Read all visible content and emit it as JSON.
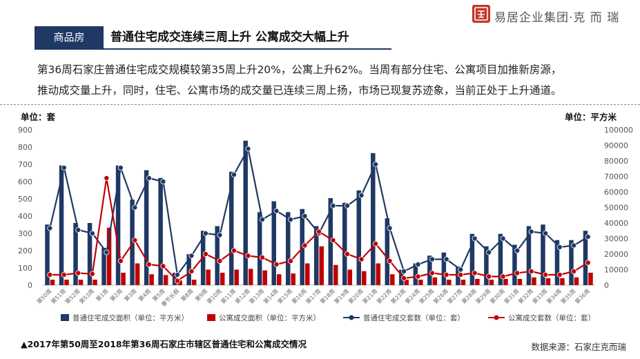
{
  "logo": {
    "text": "易居企业集团·克 而 瑞"
  },
  "header": {
    "tag": "商品房",
    "title": "普通住宅成交连续三周上升 公寓成交大幅上升"
  },
  "summary": {
    "line1": "第36周石家庄普通住宅成交规模较第35周上升20%，公寓上升62%。当周有部分住宅、公寓项目加推新房源，",
    "line2": "推动成交量上升，同时，住宅、公寓市场的成交量已连续三周上扬，市场已现复苏迹象，当前正处于上升通道。"
  },
  "colors": {
    "navy": "#1f3864",
    "red": "#c00000",
    "tag_bg": "#1f3864",
    "logo_red": "#c0392b"
  },
  "chart_data": {
    "type": "bar",
    "left_unit": "单位：套",
    "right_unit": "单位：平方米",
    "left_axis": {
      "min": 0,
      "max": 900,
      "ticks": [
        "0",
        "100",
        "200",
        "300",
        "400",
        "500",
        "600",
        "700",
        "800",
        "900"
      ]
    },
    "right_axis": {
      "min": 0,
      "max": 100000,
      "ticks": [
        "0",
        "10000",
        "20000",
        "30000",
        "40000",
        "50000",
        "60000",
        "70000",
        "80000",
        "90000",
        "100000"
      ]
    },
    "categories": [
      "第50周",
      "第51周",
      "第52周",
      "第53周",
      "第1周",
      "第2周",
      "第3周",
      "第4周",
      "第5周",
      "春节长假",
      "第8周",
      "第9周",
      "第10周",
      "第11周",
      "第12周",
      "第13周",
      "第14周",
      "第15周",
      "第16周",
      "第17周",
      "第18周",
      "第19周",
      "第20周",
      "第21周",
      "第22周",
      "第23周",
      "第24周",
      "第25周",
      "第26周",
      "第27周",
      "第28周",
      "第29周",
      "第30周",
      "第31周",
      "第32周",
      "第33周",
      "第34周",
      "第35周",
      "第36周"
    ],
    "series": [
      {
        "name": "普通住宅成交面积（单位：平方米）",
        "type": "bar",
        "axis": "right",
        "color": "#1f3864",
        "values": [
          39000,
          77000,
          40000,
          40000,
          24000,
          77000,
          55000,
          74000,
          69000,
          8000,
          20000,
          35000,
          38000,
          73000,
          93000,
          47000,
          54000,
          47000,
          49000,
          38000,
          56000,
          53000,
          61000,
          85000,
          43000,
          10000,
          14000,
          19000,
          21000,
          12000,
          33000,
          25000,
          33000,
          26000,
          38000,
          39000,
          29000,
          29000,
          35000
        ]
      },
      {
        "name": "公寓成交面积（单位：平方米）",
        "type": "bar",
        "axis": "right",
        "color": "#c00000",
        "values": [
          3500,
          3500,
          3500,
          3500,
          37000,
          8000,
          14000,
          7000,
          6500,
          3000,
          3500,
          10000,
          8000,
          10000,
          10500,
          9500,
          7000,
          7500,
          14000,
          25000,
          13000,
          10000,
          9000,
          14000,
          7000,
          3500,
          3500,
          5000,
          3500,
          3500,
          4000,
          3500,
          4000,
          4000,
          5000,
          4500,
          4500,
          5000,
          8000
        ]
      },
      {
        "name": "普通住宅成交套数（单位：套）",
        "type": "line",
        "axis": "left",
        "color": "#1f3864",
        "values": [
          330,
          680,
          320,
          300,
          190,
          680,
          450,
          620,
          600,
          60,
          170,
          300,
          290,
          640,
          790,
          380,
          430,
          380,
          400,
          300,
          460,
          460,
          520,
          700,
          330,
          80,
          120,
          150,
          150,
          90,
          270,
          190,
          270,
          200,
          310,
          300,
          220,
          230,
          280
        ]
      },
      {
        "name": "公寓成交套数（单位：套）",
        "type": "line",
        "axis": "left",
        "color": "#c00000",
        "values": [
          60,
          60,
          70,
          65,
          620,
          140,
          260,
          120,
          110,
          25,
          80,
          180,
          140,
          200,
          170,
          160,
          120,
          140,
          230,
          310,
          260,
          180,
          150,
          240,
          140,
          40,
          50,
          70,
          60,
          60,
          70,
          50,
          50,
          70,
          80,
          60,
          60,
          80,
          130
        ]
      }
    ]
  },
  "caption": "▲2017年第50周至2018年第36周石家庄市辖区普通住宅和公寓成交情况",
  "source": "数据来源：石家庄克而瑞"
}
